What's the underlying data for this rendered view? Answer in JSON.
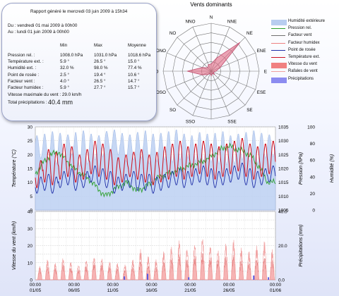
{
  "report": {
    "title": "Rapport généré le mercredi 03 juin 2009 à 15h34",
    "from": "Du : vendredi 01 mai 2009 à 00h00",
    "to": "Au : lundi 01 juin 2009 à 00h00",
    "col_min": "Min",
    "col_max": "Max",
    "col_avg": "Moyenne",
    "rows": [
      {
        "label": "Pression rel. :",
        "min": "1008.0 hPa",
        "max": "1031.0 hPa",
        "avg": "1018.6 hPa"
      },
      {
        "label": "Température ext. :",
        "min": "5.9 °",
        "max": "26.5 °",
        "avg": "15.0 °"
      },
      {
        "label": "Humidité ext. :",
        "min": "32.0 %",
        "max": "98.0 %",
        "avg": "77.4 %"
      },
      {
        "label": "Point de rosée :",
        "min": "2.5 °",
        "max": "19.4 °",
        "avg": "10.6 °"
      },
      {
        "label": "Facteur vent :",
        "min": "4.0 °",
        "max": "26.5 °",
        "avg": "14.7 °"
      },
      {
        "label": "Facteur humidex :",
        "min": "5.9 °",
        "max": "27.7 °",
        "avg": "15.7 °"
      }
    ],
    "wind_max": "Vitesse maximale du vent : 29.0 km/h",
    "rain_total_label": "Total précipitations :",
    "rain_total_value": "40.4 mm"
  },
  "legend": [
    {
      "label": "Humidité extérieure",
      "kind": "area",
      "color": "#b8cdf0"
    },
    {
      "label": "Pression rel.",
      "kind": "line",
      "color": "#2ea02e"
    },
    {
      "label": "Facteur vent",
      "kind": "line",
      "color": "#707070"
    },
    {
      "label": "Facteur humidex",
      "kind": "line",
      "color": "#ee8080"
    },
    {
      "label": "Point de rosée",
      "kind": "line",
      "color": "#1f2fa8"
    },
    {
      "label": "Température ext.",
      "kind": "line",
      "color": "#cc1020"
    },
    {
      "label": "Vitesse du vent",
      "kind": "area",
      "color": "#f08080"
    },
    {
      "label": "Rafales de vent",
      "kind": "line",
      "color": "#f0a0a0"
    },
    {
      "label": "Précipitations",
      "kind": "area",
      "color": "#8c8cf0"
    }
  ],
  "chart_data": [
    {
      "type": "radar",
      "title": "Vents dominants",
      "directions": [
        "N",
        "NNE",
        "NE",
        "ENE",
        "E",
        "ESE",
        "SE",
        "SSE",
        "S",
        "SSO",
        "SO",
        "OSO",
        "O",
        "ONO",
        "NO",
        "NNO"
      ],
      "values": [
        3,
        6,
        17,
        4,
        2,
        1,
        2,
        1,
        2,
        1,
        2,
        4,
        10,
        4,
        2,
        3
      ],
      "radial_max": 20,
      "rings": 5
    },
    {
      "type": "line",
      "x_ticks": [
        "00:00\n01/05",
        "00:00\n06/05",
        "00:00\n11/05",
        "00:00\n16/05",
        "00:00\n21/05",
        "00:00\n26/05",
        "00:00\n01/06"
      ],
      "left_axis": {
        "label": "Température (°C)",
        "ylim": [
          0,
          30
        ],
        "ticks": [
          "0",
          "5",
          "10",
          "15",
          "20",
          "25",
          "30"
        ]
      },
      "right_axis1": {
        "label": "Pression (hPa)",
        "ylim": [
          1005,
          1035
        ],
        "ticks": [
          "1005",
          "1010",
          "1015",
          "1020",
          "1025",
          "1030",
          "1035"
        ]
      },
      "right_axis2": {
        "label": "Humidité (%)",
        "ylim": [
          0,
          100
        ],
        "ticks": [
          "0",
          "20",
          "40",
          "60",
          "80",
          "100"
        ]
      },
      "series": [
        {
          "name": "Humidité extérieure",
          "axis": "humidity",
          "daily_min": [
            62,
            58,
            55,
            60,
            66,
            52,
            55,
            60,
            64,
            70,
            66,
            58,
            60,
            62,
            55,
            58,
            60,
            57,
            60,
            62,
            58,
            55,
            57,
            55,
            54,
            55,
            60,
            58,
            55,
            62,
            64
          ],
          "daily_max": [
            90,
            92,
            95,
            93,
            91,
            94,
            96,
            92,
            90,
            95,
            97,
            93,
            91,
            94,
            96,
            92,
            93,
            95,
            97,
            92,
            90,
            94,
            92,
            93,
            95,
            90,
            92,
            94,
            96,
            93,
            91
          ]
        },
        {
          "name": "Pression rel.",
          "axis": "pressure",
          "daily": [
            1018,
            1022,
            1025,
            1026,
            1023,
            1020,
            1018,
            1016,
            1013,
            1010,
            1012,
            1014,
            1015,
            1012,
            1013,
            1015,
            1017,
            1018,
            1019,
            1020,
            1021,
            1022,
            1023,
            1025,
            1027,
            1028,
            1027,
            1026,
            1024,
            1020,
            1015
          ]
        },
        {
          "name": "Température ext.",
          "axis": "temperature",
          "daily_min": [
            8,
            10,
            9,
            11,
            12,
            10,
            11,
            13,
            12,
            11,
            9,
            10,
            12,
            11,
            10,
            9,
            10,
            11,
            12,
            11,
            12,
            13,
            12,
            11,
            12,
            13,
            14,
            12,
            11,
            12,
            13
          ],
          "daily_max": [
            18,
            22,
            21,
            24,
            23,
            20,
            22,
            25,
            24,
            22,
            19,
            20,
            21,
            22,
            20,
            21,
            23,
            24,
            25,
            23,
            24,
            25,
            24,
            23,
            24,
            25,
            26,
            24,
            23,
            24,
            25
          ]
        },
        {
          "name": "Point de rosée",
          "axis": "temperature",
          "daily_min": [
            6,
            7,
            6,
            8,
            9,
            7,
            8,
            10,
            9,
            8,
            6,
            7,
            8,
            7,
            7,
            6,
            7,
            8,
            9,
            8,
            9,
            10,
            9,
            8,
            9,
            10,
            11,
            9,
            8,
            9,
            10
          ],
          "daily_max": [
            12,
            13,
            12,
            14,
            15,
            13,
            14,
            16,
            15,
            14,
            12,
            13,
            14,
            13,
            13,
            12,
            13,
            14,
            15,
            14,
            15,
            16,
            15,
            14,
            15,
            16,
            17,
            15,
            14,
            15,
            16
          ]
        }
      ]
    },
    {
      "type": "area",
      "left_axis": {
        "label": "Vitesse du vent (km/h)",
        "ylim": [
          0,
          40
        ],
        "ticks": [
          "0",
          "10",
          "20",
          "30",
          "40"
        ]
      },
      "right_axis": {
        "label": "Précipitations (mm)",
        "ylim": [
          0,
          40
        ],
        "ticks": [
          "0.0",
          "20.0",
          "40.0"
        ]
      },
      "series": [
        {
          "name": "Vitesse du vent",
          "daily_peak": [
            6,
            8,
            7,
            9,
            7,
            6,
            8,
            10,
            9,
            8,
            7,
            6,
            8,
            12,
            9,
            8,
            11,
            13,
            15,
            12,
            14,
            16,
            13,
            12,
            14,
            15,
            12,
            11,
            13,
            14,
            12
          ]
        },
        {
          "name": "Rafales de vent",
          "daily_peak": [
            8,
            12,
            10,
            13,
            11,
            9,
            12,
            14,
            13,
            11,
            10,
            9,
            12,
            18,
            14,
            12,
            17,
            20,
            24,
            19,
            22,
            26,
            21,
            18,
            22,
            24,
            19,
            17,
            20,
            23,
            18
          ]
        },
        {
          "name": "Précipitations",
          "days": [
            11.5,
            14.5,
            19.8,
            28.2,
            30.1
          ],
          "values": [
            2.0,
            3.5,
            1.5,
            2.5,
            1.5
          ]
        }
      ]
    }
  ]
}
